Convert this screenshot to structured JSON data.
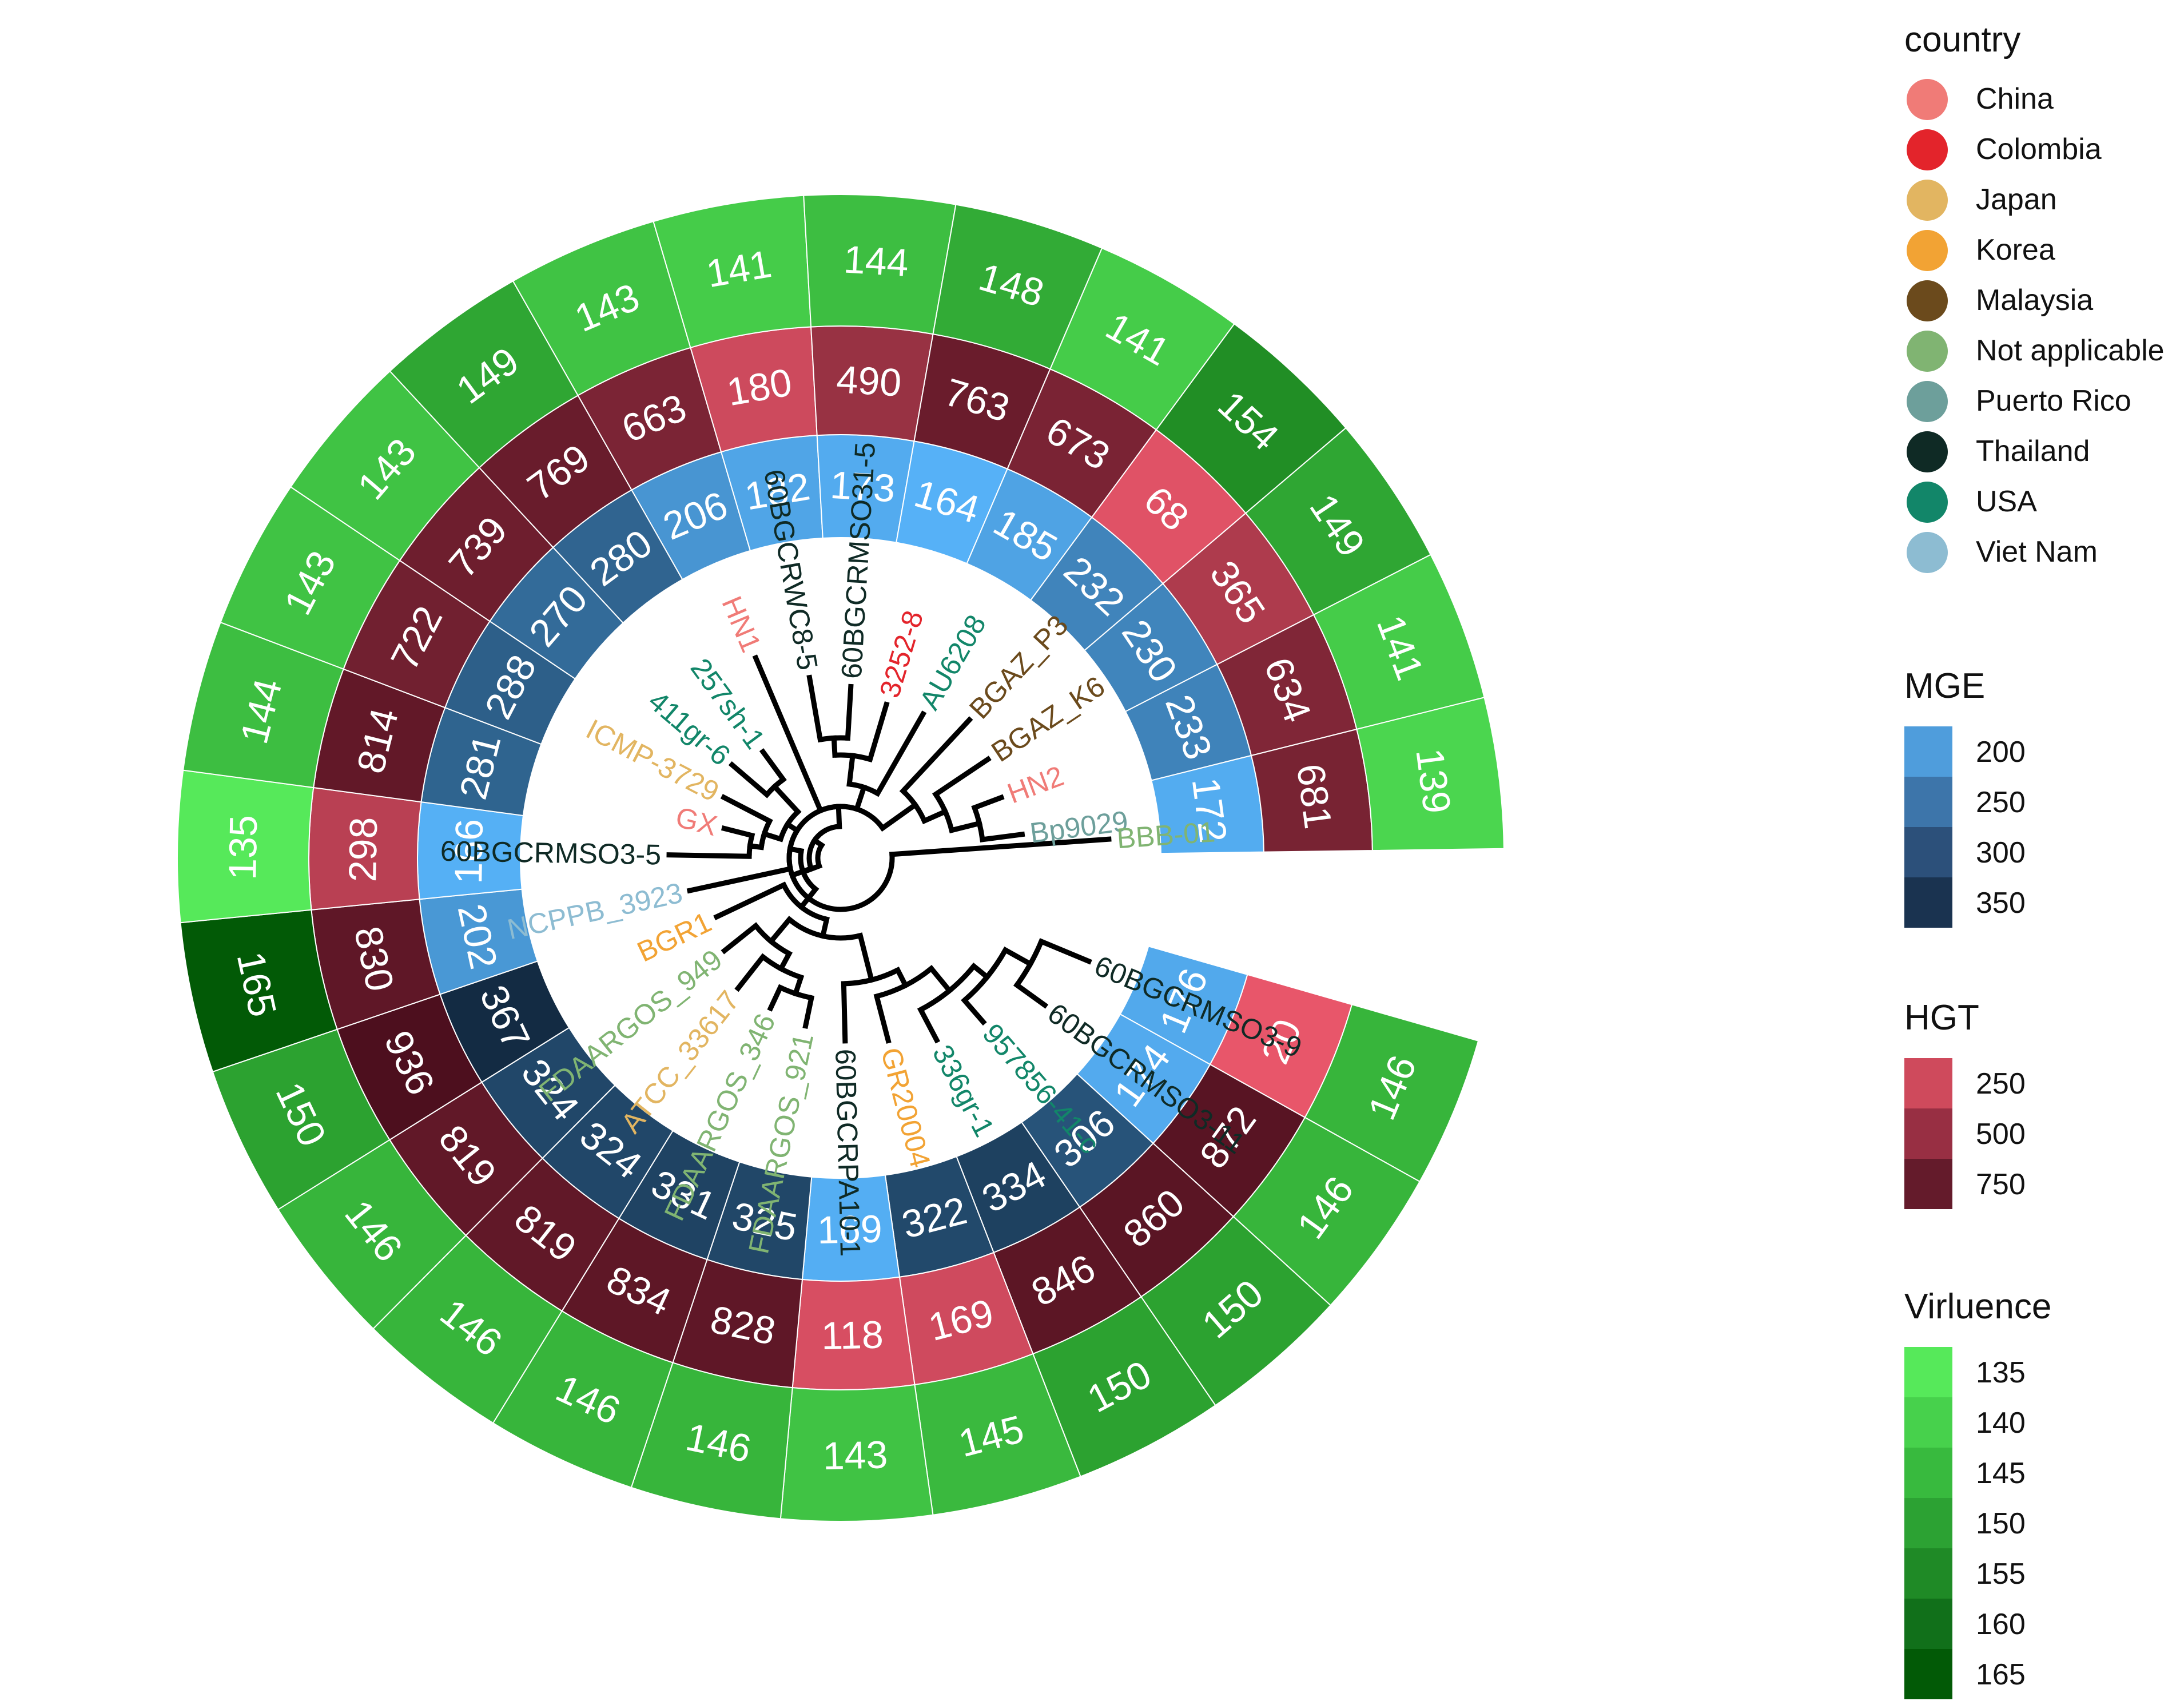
{
  "chart_data": {
    "type": "circular-phylogenetic-tree-heatmap",
    "title": "",
    "rings": [
      "MGE",
      "HGT",
      "Virluence"
    ],
    "tips": [
      {
        "label": "60BGCRMSO3-9",
        "country": "Thailand",
        "MGE": 176,
        "HGT": 20,
        "Virluence": 146
      },
      {
        "label": "60BGCRMSO3-11",
        "country": "Thailand",
        "MGE": 174,
        "HGT": 872,
        "Virluence": 146
      },
      {
        "label": "957856-41-c",
        "country": "USA",
        "MGE": 306,
        "HGT": 860,
        "Virluence": 150
      },
      {
        "label": "336gr-1",
        "country": "USA",
        "MGE": 334,
        "HGT": 846,
        "Virluence": 150
      },
      {
        "label": "GR20004",
        "country": "Korea",
        "MGE": 322,
        "HGT": 169,
        "Virluence": 145
      },
      {
        "label": "60BGCRPA10-1",
        "country": "Thailand",
        "MGE": 169,
        "HGT": 118,
        "Virluence": 143
      },
      {
        "label": "FDAARGOS_921",
        "country": "Not applicable",
        "MGE": 325,
        "HGT": 828,
        "Virluence": 146
      },
      {
        "label": "FDAARGOS_346",
        "country": "Not applicable",
        "MGE": 331,
        "HGT": 834,
        "Virluence": 146
      },
      {
        "label": "ATCC_33617",
        "country": "Japan",
        "MGE": 324,
        "HGT": 819,
        "Virluence": 146
      },
      {
        "label": "FDAARGOS_949",
        "country": "Not applicable",
        "MGE": 324,
        "HGT": 819,
        "Virluence": 146
      },
      {
        "label": "BGR1",
        "country": "Korea",
        "MGE": 367,
        "HGT": 936,
        "Virluence": 150
      },
      {
        "label": "NCPPB_3923",
        "country": "Viet Nam",
        "MGE": 202,
        "HGT": 830,
        "Virluence": 165
      },
      {
        "label": "60BGCRMSO3-5",
        "country": "Thailand",
        "MGE": 166,
        "HGT": 298,
        "Virluence": 135
      },
      {
        "label": "GX",
        "country": "China",
        "MGE": 281,
        "HGT": 814,
        "Virluence": 144
      },
      {
        "label": "ICMP-3729",
        "country": "Japan",
        "MGE": 288,
        "HGT": 722,
        "Virluence": 143
      },
      {
        "label": "411gr-6",
        "country": "USA",
        "MGE": 270,
        "HGT": 739,
        "Virluence": 143
      },
      {
        "label": "257sh-1",
        "country": "USA",
        "MGE": 280,
        "HGT": 769,
        "Virluence": 149
      },
      {
        "label": "HN1",
        "country": "China",
        "MGE": 206,
        "HGT": 663,
        "Virluence": 143
      },
      {
        "label": "60BGCRWC8-5",
        "country": "Thailand",
        "MGE": 182,
        "HGT": 180,
        "Virluence": 141
      },
      {
        "label": "60BGCRMSO31-5",
        "country": "Thailand",
        "MGE": 173,
        "HGT": 490,
        "Virluence": 144
      },
      {
        "label": "3252-8",
        "country": "Colombia",
        "MGE": 164,
        "HGT": 763,
        "Virluence": 148
      },
      {
        "label": "AU6208",
        "country": "USA",
        "MGE": 185,
        "HGT": 673,
        "Virluence": 141
      },
      {
        "label": "BGAZ_P3",
        "country": "Malaysia",
        "MGE": 232,
        "HGT": 68,
        "Virluence": 154
      },
      {
        "label": "BGAZ_K6",
        "country": "Malaysia",
        "MGE": 230,
        "HGT": 365,
        "Virluence": 149
      },
      {
        "label": "HN2",
        "country": "China",
        "MGE": 233,
        "HGT": 634,
        "Virluence": 141
      },
      {
        "label": "Bp9029",
        "country": "Puerto Rico",
        "MGE": 172,
        "HGT": 681,
        "Virluence": 139
      },
      {
        "label": "BBB-01",
        "country": "Not applicable",
        "MGE": null,
        "HGT": null,
        "Virluence": null
      }
    ],
    "legends": {
      "country": {
        "title": "country",
        "items": [
          {
            "label": "China",
            "color": "#f07b77"
          },
          {
            "label": "Colombia",
            "color": "#e3242b"
          },
          {
            "label": "Japan",
            "color": "#e2b561"
          },
          {
            "label": "Korea",
            "color": "#f2a334"
          },
          {
            "label": "Malaysia",
            "color": "#6b4a1c"
          },
          {
            "label": "Not applicable",
            "color": "#80b472"
          },
          {
            "label": "Puerto Rico",
            "color": "#6d9f9b"
          },
          {
            "label": "Thailand",
            "color": "#0f2a25"
          },
          {
            "label": "USA",
            "color": "#128669"
          },
          {
            "label": "Viet Nam",
            "color": "#8dbcd2"
          }
        ]
      },
      "MGE": {
        "title": "MGE",
        "items": [
          {
            "label": "200",
            "color": "#4f9ddc"
          },
          {
            "label": "250",
            "color": "#3d75aa"
          },
          {
            "label": "300",
            "color": "#2c507a"
          },
          {
            "label": "350",
            "color": "#1a3350"
          }
        ]
      },
      "HGT": {
        "title": "HGT",
        "items": [
          {
            "label": "250",
            "color": "#cf4a5c"
          },
          {
            "label": "500",
            "color": "#982f43"
          },
          {
            "label": "750",
            "color": "#641b2b"
          }
        ]
      },
      "Virluence": {
        "title": "Virluence",
        "items": [
          {
            "label": "135",
            "color": "#56e95a"
          },
          {
            "label": "140",
            "color": "#47d14c"
          },
          {
            "label": "145",
            "color": "#38ba3e"
          },
          {
            "label": "150",
            "color": "#2ca233"
          },
          {
            "label": "155",
            "color": "#1f8a26"
          },
          {
            "label": "160",
            "color": "#11701a"
          },
          {
            "label": "165",
            "color": "#025a06"
          }
        ]
      }
    },
    "scales": {
      "MGE": {
        "min": 164,
        "max": 367,
        "low_color": "#56b1f7",
        "high_color": "#132b43"
      },
      "HGT": {
        "min": 20,
        "max": 936,
        "low_color": "#e8566a",
        "high_color": "#4d0f1e"
      },
      "Virluence": {
        "min": 135,
        "max": 165,
        "low_color": "#56e95a",
        "high_color": "#025a06"
      }
    }
  }
}
